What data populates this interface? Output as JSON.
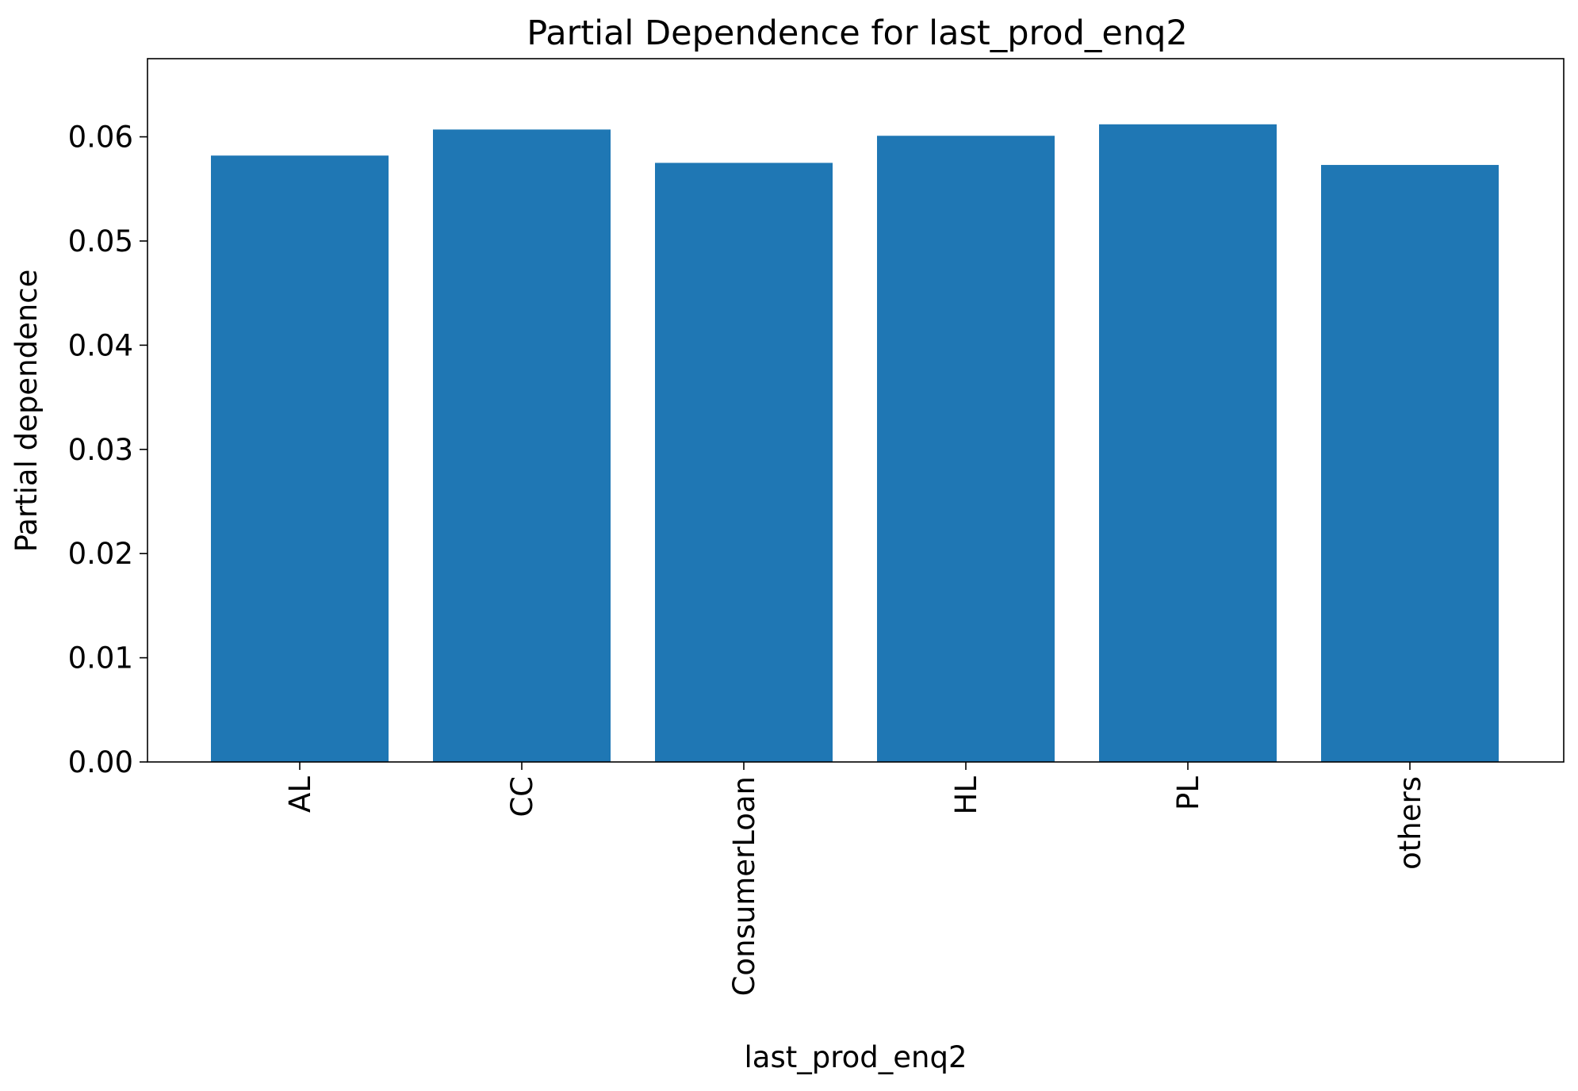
{
  "chart_data": {
    "type": "bar",
    "title": "Partial Dependence for last_prod_enq2",
    "xlabel": "last_prod_enq2",
    "ylabel": "Partial dependence",
    "categories": [
      "AL",
      "CC",
      "ConsumerLoan",
      "HL",
      "PL",
      "others"
    ],
    "values": [
      0.0582,
      0.0607,
      0.0575,
      0.0601,
      0.0612,
      0.0573
    ],
    "ylim": [
      0,
      0.0675
    ],
    "yticks": [
      0.0,
      0.01,
      0.02,
      0.03,
      0.04,
      0.05,
      0.06
    ],
    "ytick_labels": [
      "0.00",
      "0.01",
      "0.02",
      "0.03",
      "0.04",
      "0.05",
      "0.06"
    ],
    "bar_color": "#1f77b4",
    "grid": false,
    "legend": "none",
    "xtick_rotation": "vertical"
  }
}
